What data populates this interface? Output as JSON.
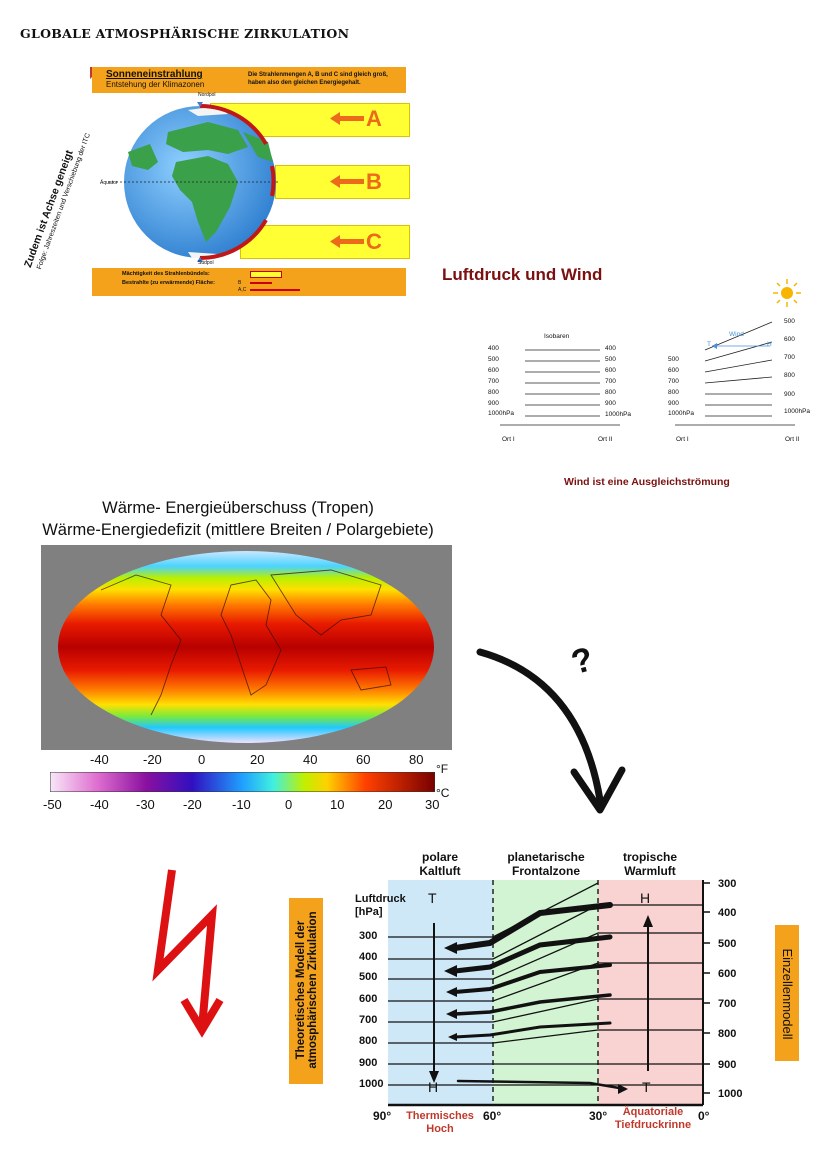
{
  "page_title": "GLOBALE ATMOSPHÄRISCHE ZIRKULATION",
  "insolation": {
    "title": "Sonneneinstrahlung",
    "subtitle": "Entstehung der Klimazonen",
    "note": "Die Strahlenmengen A, B und C sind gleich groß, haben also den gleichen Energiegehalt.",
    "north_pole": "Nordpol",
    "south_pole": "Südpol",
    "equator": "Äquator",
    "rays": [
      "A",
      "B",
      "C"
    ],
    "legend_1": "Mächtigkeit des Strahlenbündels:",
    "legend_2": "Bestrahlte (zu erwärmende) Fläche:",
    "legend_b": "B",
    "legend_ac": "A,C",
    "side_note_1": "Zudem ist Achse geneigt",
    "side_note_2": "Folge: Jahreszeiten und Verschiebung der ITC"
  },
  "pressure_wind": {
    "title": "Luftdruck und Wind",
    "isobars_label": "Isobaren",
    "wind_label": "Wind",
    "t_label": "T",
    "h_label": "H",
    "left_levels": [
      "400",
      "500",
      "600",
      "700",
      "800",
      "900",
      "1000hPa"
    ],
    "right_levels_b": [
      "500",
      "600",
      "700",
      "800",
      "900",
      "1000hPa"
    ],
    "place_1": "Ort I",
    "place_2": "Ort II",
    "caption": "Wind ist eine Ausgleichströmung"
  },
  "heat_map": {
    "title_1": "Wärme- Energieüberschuss (Tropen)",
    "title_2": "Wärme-Energiedefizit (mittlere Breiten / Polargebiete)",
    "f_ticks": [
      "-40",
      "-20",
      "0",
      "20",
      "40",
      "60",
      "80"
    ],
    "f_unit": "°F",
    "c_ticks": [
      "-50",
      "-40",
      "-30",
      "-20",
      "-10",
      "0",
      "10",
      "20",
      "30"
    ],
    "c_unit": "°C"
  },
  "question_mark": "?",
  "circulation": {
    "side_left": "Theoretisches Modell der atmosphärischen Zirkulation",
    "side_right": "Einzellenmodell",
    "zone_polar": "polare Kaltluft",
    "zone_front": "planetarische Frontalzone",
    "zone_tropic": "tropische Warmluft",
    "y_label": "Luftdruck [hPa]",
    "left_levels": [
      "300",
      "400",
      "500",
      "600",
      "700",
      "800",
      "900",
      "1000"
    ],
    "right_levels": [
      "300",
      "400",
      "500",
      "600",
      "700",
      "800",
      "900",
      "1000"
    ],
    "t_top": "T",
    "h_bottom": "H",
    "h_top": "H",
    "t_bottom": "T",
    "x_labels": [
      "90°",
      "60°",
      "30°",
      "0°"
    ],
    "label_high": "Thermisches Hoch",
    "label_low": "Äquatoriale Tiefdruckrinne"
  }
}
